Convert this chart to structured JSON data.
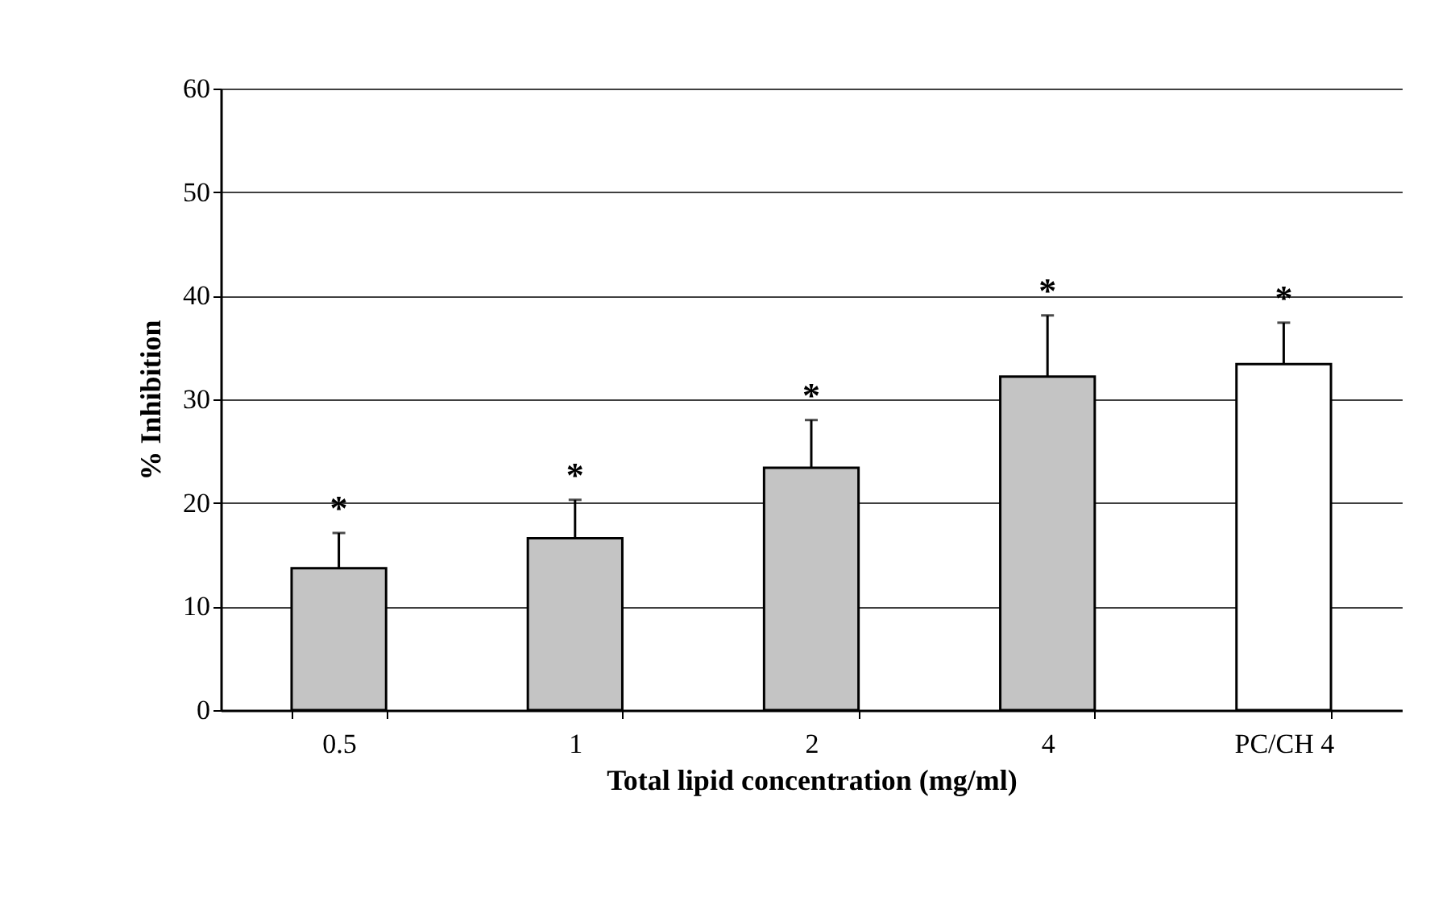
{
  "chart_data": {
    "type": "bar",
    "xlabel": "Total lipid concentration (mg/ml)",
    "ylabel": "% Inhibition",
    "categories": [
      "0.5",
      "1",
      "2",
      "4",
      "PC/CH 4"
    ],
    "values": [
      13.7,
      16.6,
      23.4,
      32.2,
      33.4
    ],
    "colors": [
      "#c4c4c4",
      "#c4c4c4",
      "#c4c4c4",
      "#c4c4c4",
      "#ffffff"
    ],
    "errors": [
      [
        13.7,
        17.1
      ],
      [
        16.6,
        20.3
      ],
      [
        23.4,
        28.0
      ],
      [
        32.2,
        38.1
      ],
      [
        33.4,
        37.4
      ]
    ],
    "annotations": [
      "*",
      "*",
      "*",
      "*",
      "*"
    ],
    "ylim": [
      0,
      60
    ],
    "yticks": [
      0,
      10,
      20,
      30,
      40,
      50,
      60
    ],
    "grid": "y"
  }
}
